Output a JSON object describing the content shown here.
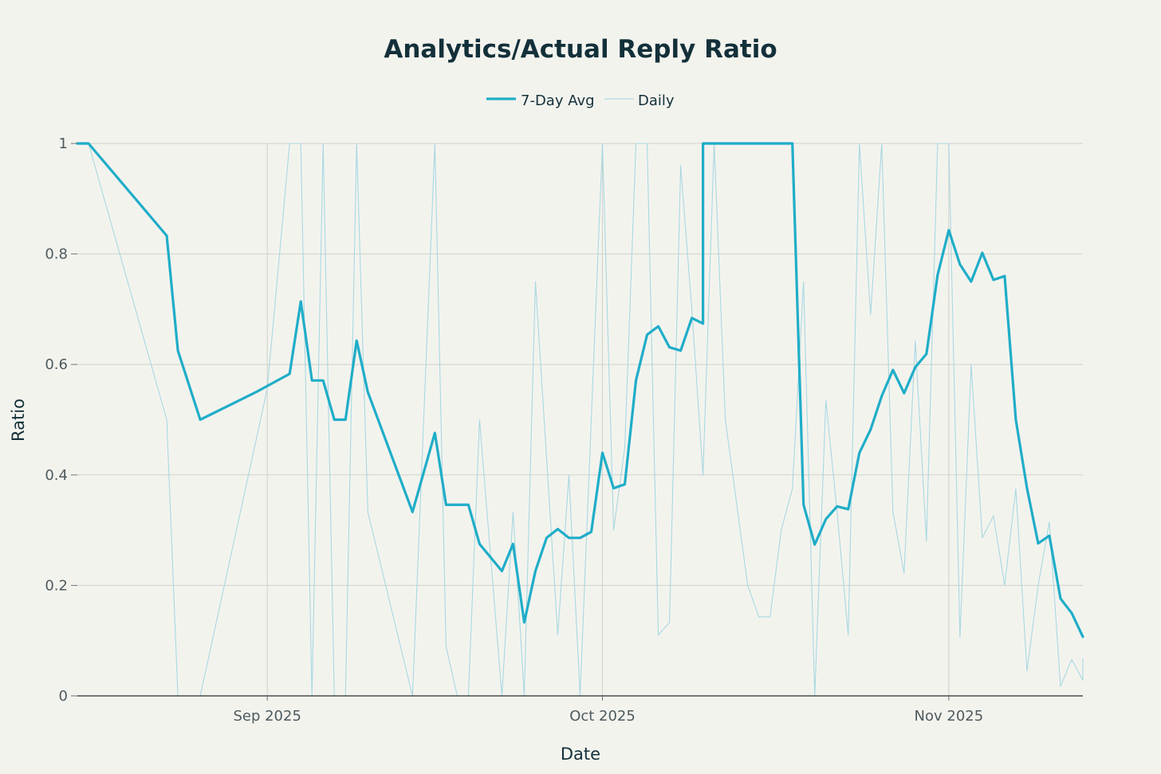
{
  "chart_data": {
    "type": "line",
    "title": "Analytics/Actual Reply Ratio",
    "xlabel": "Date",
    "ylabel": "Ratio",
    "ylim": [
      0,
      1
    ],
    "xlim": [
      "2025-08-15",
      "2025-11-13"
    ],
    "grid": true,
    "legend_position": "top-center",
    "y_ticks": [
      0,
      0.2,
      0.4,
      0.6,
      0.8,
      1
    ],
    "y_tick_labels": [
      "0",
      "0.2",
      "0.4",
      "0.6",
      "0.8",
      "1"
    ],
    "x_ticks": [
      "2025-09-01",
      "2025-10-01",
      "2025-11-01"
    ],
    "x_tick_labels": [
      "Sep 2025",
      "Oct 2025",
      "Nov 2025"
    ],
    "colors": {
      "avg": "#1fadc8",
      "daily": "#a9d8e1"
    },
    "series": [
      {
        "name": "7-Day Avg",
        "points": [
          [
            "2025-08-15",
            1.0
          ],
          [
            "2025-08-16",
            1.0
          ],
          [
            "2025-08-23",
            0.833
          ],
          [
            "2025-08-24",
            0.625
          ],
          [
            "2025-08-26",
            0.5
          ],
          [
            "2025-08-31",
            0.55
          ],
          [
            "2025-09-03",
            0.583
          ],
          [
            "2025-09-04",
            0.714
          ],
          [
            "2025-09-05",
            0.571
          ],
          [
            "2025-09-06",
            0.571
          ],
          [
            "2025-09-07",
            0.5
          ],
          [
            "2025-09-08",
            0.5
          ],
          [
            "2025-09-09",
            0.643
          ],
          [
            "2025-09-10",
            0.55
          ],
          [
            "2025-09-14",
            0.333
          ],
          [
            "2025-09-16",
            0.476
          ],
          [
            "2025-09-17",
            0.346
          ],
          [
            "2025-09-19",
            0.346
          ],
          [
            "2025-09-20",
            0.275
          ],
          [
            "2025-09-22",
            0.226
          ],
          [
            "2025-09-23",
            0.275
          ],
          [
            "2025-09-24",
            0.133
          ],
          [
            "2025-09-25",
            0.226
          ],
          [
            "2025-09-26",
            0.286
          ],
          [
            "2025-09-27",
            0.302
          ],
          [
            "2025-09-28",
            0.286
          ],
          [
            "2025-09-29",
            0.286
          ],
          [
            "2025-09-30",
            0.297
          ],
          [
            "2025-10-01",
            0.44
          ],
          [
            "2025-10-02",
            0.376
          ],
          [
            "2025-10-03",
            0.383
          ],
          [
            "2025-10-04",
            0.571
          ],
          [
            "2025-10-05",
            0.654
          ],
          [
            "2025-10-06",
            0.669
          ],
          [
            "2025-10-07",
            0.631
          ],
          [
            "2025-10-08",
            0.625
          ],
          [
            "2025-10-09",
            0.684
          ],
          [
            "2025-10-10",
            0.674
          ],
          [
            "2025-10-10",
            1.0
          ],
          [
            "2025-10-18",
            1.0
          ],
          [
            "2025-10-19",
            0.346
          ],
          [
            "2025-10-20",
            0.274
          ],
          [
            "2025-10-21",
            0.32
          ],
          [
            "2025-10-22",
            0.343
          ],
          [
            "2025-10-23",
            0.338
          ],
          [
            "2025-10-24",
            0.44
          ],
          [
            "2025-10-25",
            0.482
          ],
          [
            "2025-10-26",
            0.543
          ],
          [
            "2025-10-27",
            0.59
          ],
          [
            "2025-10-28",
            0.548
          ],
          [
            "2025-10-29",
            0.595
          ],
          [
            "2025-10-30",
            0.619
          ],
          [
            "2025-10-31",
            0.762
          ],
          [
            "2025-11-01",
            0.843
          ],
          [
            "2025-11-02",
            0.781
          ],
          [
            "2025-11-03",
            0.75
          ],
          [
            "2025-11-04",
            0.802
          ],
          [
            "2025-11-05",
            0.753
          ],
          [
            "2025-11-06",
            0.76
          ],
          [
            "2025-11-07",
            0.5
          ],
          [
            "2025-11-08",
            0.376
          ],
          [
            "2025-11-09",
            0.276
          ],
          [
            "2025-11-10",
            0.29
          ],
          [
            "2025-11-11",
            0.176
          ],
          [
            "2025-11-12",
            0.15
          ],
          [
            "2025-11-13",
            0.107
          ]
        ]
      },
      {
        "name": "Daily",
        "points": [
          [
            "2025-08-15",
            1.0
          ],
          [
            "2025-08-16",
            1.0
          ],
          [
            "2025-08-23",
            0.5
          ],
          [
            "2025-08-24",
            0.0
          ],
          [
            "2025-08-26",
            0.0
          ],
          [
            "2025-09-01",
            0.556
          ],
          [
            "2025-09-03",
            1.0
          ],
          [
            "2025-09-04",
            1.0
          ],
          [
            "2025-09-05",
            0.0
          ],
          [
            "2025-09-06",
            1.0
          ],
          [
            "2025-09-07",
            0.0
          ],
          [
            "2025-09-08",
            0.0
          ],
          [
            "2025-09-09",
            1.0
          ],
          [
            "2025-09-10",
            0.333
          ],
          [
            "2025-09-14",
            0.0
          ],
          [
            "2025-09-16",
            1.0
          ],
          [
            "2025-09-17",
            0.09
          ],
          [
            "2025-09-18",
            0.0
          ],
          [
            "2025-09-19",
            0.0
          ],
          [
            "2025-09-20",
            0.5
          ],
          [
            "2025-09-22",
            0.0
          ],
          [
            "2025-09-23",
            0.333
          ],
          [
            "2025-09-24",
            0.0
          ],
          [
            "2025-09-25",
            0.75
          ],
          [
            "2025-09-27",
            0.11
          ],
          [
            "2025-09-28",
            0.4
          ],
          [
            "2025-09-29",
            0.0
          ],
          [
            "2025-10-01",
            1.0
          ],
          [
            "2025-10-02",
            0.3
          ],
          [
            "2025-10-03",
            0.45
          ],
          [
            "2025-10-04",
            1.0
          ],
          [
            "2025-10-05",
            1.0
          ],
          [
            "2025-10-06",
            0.11
          ],
          [
            "2025-10-07",
            0.133
          ],
          [
            "2025-10-08",
            0.96
          ],
          [
            "2025-10-09",
            0.7
          ],
          [
            "2025-10-10",
            0.4
          ],
          [
            "2025-10-11",
            1.0
          ],
          [
            "2025-10-12",
            0.5
          ],
          [
            "2025-10-14",
            0.2
          ],
          [
            "2025-10-15",
            0.143
          ],
          [
            "2025-10-16",
            0.143
          ],
          [
            "2025-10-17",
            0.3
          ],
          [
            "2025-10-18",
            0.375
          ],
          [
            "2025-10-19",
            0.75
          ],
          [
            "2025-10-20",
            0.0
          ],
          [
            "2025-10-21",
            0.535
          ],
          [
            "2025-10-22",
            0.333
          ],
          [
            "2025-10-23",
            0.11
          ],
          [
            "2025-10-24",
            1.0
          ],
          [
            "2025-10-25",
            0.69
          ],
          [
            "2025-10-26",
            1.0
          ],
          [
            "2025-10-27",
            0.333
          ],
          [
            "2025-10-28",
            0.222
          ],
          [
            "2025-10-29",
            0.643
          ],
          [
            "2025-10-30",
            0.28
          ],
          [
            "2025-10-31",
            1.0
          ],
          [
            "2025-11-01",
            1.0
          ],
          [
            "2025-11-02",
            0.106
          ],
          [
            "2025-11-03",
            0.6
          ],
          [
            "2025-11-04",
            0.286
          ],
          [
            "2025-11-05",
            0.326
          ],
          [
            "2025-11-06",
            0.2
          ],
          [
            "2025-11-07",
            0.375
          ],
          [
            "2025-11-08",
            0.045
          ],
          [
            "2025-11-09",
            0.2
          ],
          [
            "2025-11-10",
            0.315
          ],
          [
            "2025-11-11",
            0.017
          ],
          [
            "2025-11-12",
            0.066
          ],
          [
            "2025-11-13",
            0.028
          ],
          [
            "2025-11-13",
            0.068
          ]
        ]
      }
    ]
  }
}
